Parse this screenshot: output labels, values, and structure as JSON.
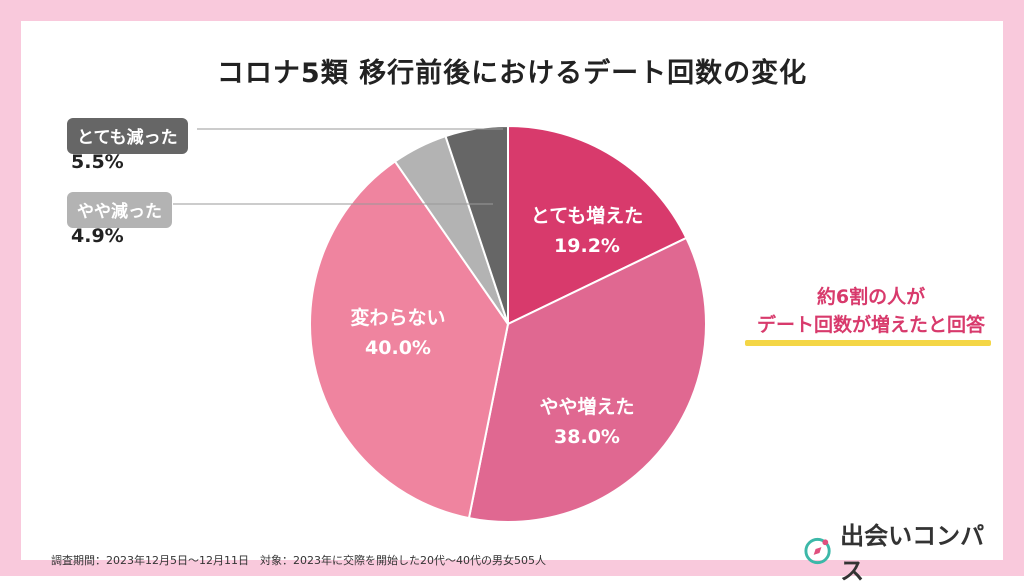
{
  "title": "コロナ5類 移行前後におけるデート回数の変化",
  "chart_data": {
    "type": "pie",
    "title": "コロナ5類 移行前後におけるデート回数の変化",
    "slices": [
      {
        "label": "とても増えた",
        "value": 19.2,
        "display": "19.2%",
        "color": "#d83a6c"
      },
      {
        "label": "やや増えた",
        "value": 38.0,
        "display": "38.0%",
        "color": "#e06891"
      },
      {
        "label": "変わらない",
        "value": 40.0,
        "display": "40.0%",
        "color": "#ef849f"
      },
      {
        "label": "やや減った",
        "value": 4.9,
        "display": "4.9%",
        "color": "#b3b3b3"
      },
      {
        "label": "とても減った",
        "value": 5.5,
        "display": "5.5%",
        "color": "#666666"
      }
    ],
    "start": "12 o'clock",
    "direction": "clockwise",
    "legend": "none"
  },
  "note": {
    "line1": "約6割の人が",
    "line2": "デート回数が増えたと回答"
  },
  "footer": "調査期間：2023年12月5日〜12月11日　対象：2023年に交際を開始した20代〜40代の男女505人",
  "brand": {
    "name": "出会いコンパス"
  },
  "colors": {
    "frame": "#f9c9dc",
    "accent": "#d83a6c",
    "highlight": "#f4d646"
  }
}
